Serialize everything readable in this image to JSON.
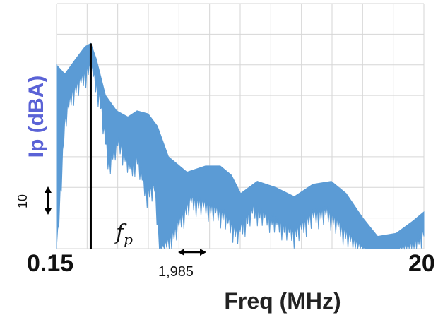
{
  "chart_data": {
    "type": "area",
    "ylabel": "Ip (dBA)",
    "xlabel": "Freq (MHz)",
    "x_min_label": "0.15",
    "x_max_label": "20",
    "step_label": "1,985",
    "scale_label": "10",
    "marker_label": "f",
    "marker_sub": "p",
    "xlim": [
      0.15,
      20
    ],
    "marker_x": 2.0,
    "grid": true,
    "color": "#5b9bd5",
    "envelope_top": [
      [
        0.15,
        60
      ],
      [
        0.6,
        57
      ],
      [
        1.2,
        62
      ],
      [
        1.7,
        66
      ],
      [
        2.0,
        67
      ],
      [
        2.3,
        62
      ],
      [
        2.8,
        50
      ],
      [
        3.4,
        45
      ],
      [
        4.0,
        43
      ],
      [
        4.5,
        45
      ],
      [
        5.1,
        44
      ],
      [
        5.6,
        40
      ],
      [
        6.2,
        30
      ],
      [
        7.2,
        25
      ],
      [
        8.2,
        27
      ],
      [
        9.0,
        27
      ],
      [
        9.6,
        24
      ],
      [
        10.1,
        18
      ],
      [
        11.0,
        22
      ],
      [
        12.0,
        20
      ],
      [
        13.0,
        17
      ],
      [
        14.0,
        21
      ],
      [
        15.0,
        22
      ],
      [
        15.8,
        18
      ],
      [
        16.7,
        10
      ],
      [
        17.5,
        4
      ],
      [
        18.5,
        5
      ],
      [
        19.4,
        9
      ],
      [
        20,
        12
      ]
    ],
    "envelope_bottom": [
      [
        0.15,
        0
      ],
      [
        0.6,
        44
      ],
      [
        1.0,
        53
      ],
      [
        1.6,
        58
      ],
      [
        2.0,
        62
      ],
      [
        2.5,
        51
      ],
      [
        2.95,
        30
      ],
      [
        3.5,
        37
      ],
      [
        4.2,
        28
      ],
      [
        4.5,
        32
      ],
      [
        5.0,
        20
      ],
      [
        5.45,
        22
      ],
      [
        5.75,
        0
      ],
      [
        6.5,
        7
      ],
      [
        7.4,
        18
      ],
      [
        8.3,
        16
      ],
      [
        9.2,
        13
      ],
      [
        9.9,
        7
      ],
      [
        10.8,
        15
      ],
      [
        12.0,
        11
      ],
      [
        13.0,
        7
      ],
      [
        14.0,
        13
      ],
      [
        14.8,
        14
      ],
      [
        15.5,
        9
      ],
      [
        16.8,
        0
      ],
      [
        17.6,
        0
      ],
      [
        18.6,
        0
      ],
      [
        19.4,
        3
      ],
      [
        20,
        7
      ]
    ]
  }
}
